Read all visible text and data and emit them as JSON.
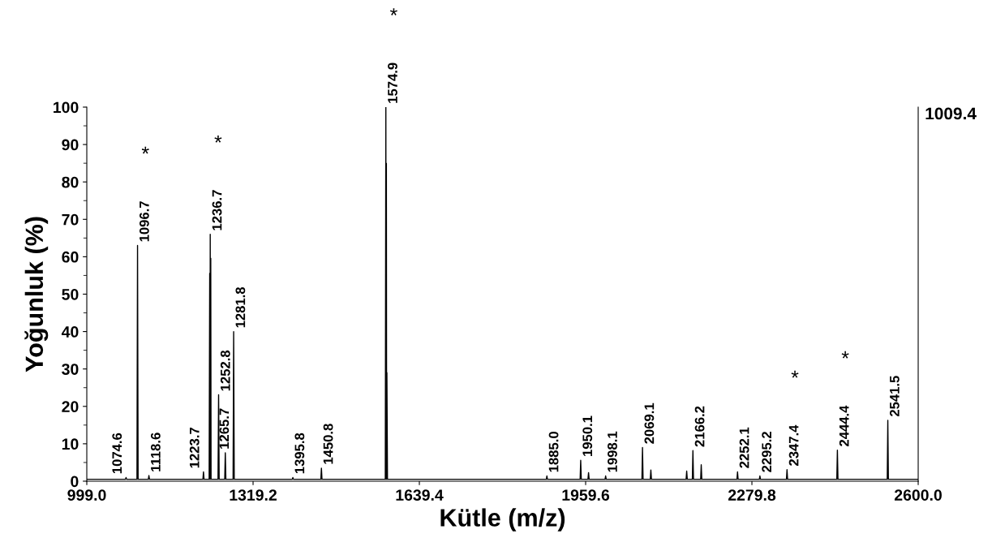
{
  "chart_data": {
    "type": "line",
    "xlabel": "Kütle (m/z)",
    "ylabel": "Yoğunluk (%)",
    "xlim": [
      999.0,
      2600.0
    ],
    "ylim": [
      0,
      100
    ],
    "xticks": [
      {
        "value": 999.0,
        "label": "999.0"
      },
      {
        "value": 1319.2,
        "label": "1319.2"
      },
      {
        "value": 1639.4,
        "label": "1639.4"
      },
      {
        "value": 1959.6,
        "label": "1959.6"
      },
      {
        "value": 2279.8,
        "label": "2279.8"
      },
      {
        "value": 2600.0,
        "label": "2600.0"
      }
    ],
    "yticks": [
      0,
      10,
      20,
      30,
      40,
      50,
      60,
      70,
      80,
      90,
      100
    ],
    "grid": false,
    "legend": false,
    "marker": "none",
    "line_style": "solid",
    "series": [
      {
        "color": "#000000",
        "x": [
          999.0,
          1073.5,
          1074.6,
          1075.7,
          1095.6,
          1096.7,
          1097.8,
          1117.5,
          1118.6,
          1119.7,
          1222.6,
          1223.7,
          1224.8,
          1234.6,
          1235.7,
          1236.2,
          1236.7,
          1237.2,
          1237.7,
          1238.3,
          1251.7,
          1252.8,
          1253.9,
          1264.6,
          1265.7,
          1266.8,
          1280.7,
          1281.8,
          1282.9,
          1394.7,
          1395.8,
          1396.9,
          1449.7,
          1450.8,
          1451.9,
          1573.8,
          1574.9,
          1575.4,
          1575.9,
          1576.4,
          1576.9,
          1578.0,
          1883.9,
          1885.0,
          1886.1,
          1949.0,
          1950.1,
          1951.2,
          1964.1,
          1965.2,
          1966.3,
          1997.0,
          1998.1,
          1999.2,
          2068.0,
          2069.1,
          2070.2,
          2084.1,
          2085.2,
          2086.3,
          2153.1,
          2154.2,
          2155.3,
          2165.1,
          2166.2,
          2167.3,
          2181.1,
          2182.2,
          2183.3,
          2251.0,
          2252.1,
          2253.2,
          2294.1,
          2295.2,
          2296.3,
          2346.3,
          2347.4,
          2348.5,
          2443.3,
          2444.4,
          2445.5,
          2540.4,
          2541.5,
          2542.6,
          2600.0
        ],
        "values": [
          0.5,
          0.5,
          1.0,
          0.5,
          0.5,
          63,
          0.5,
          0.5,
          1.5,
          0.5,
          0.5,
          2.5,
          0.5,
          0.5,
          55.6,
          0.5,
          66,
          0.5,
          59.6,
          0.5,
          0.5,
          23.1,
          0.5,
          0.5,
          7.6,
          0.5,
          0.5,
          40,
          0.5,
          0.5,
          1.0,
          0.5,
          0.5,
          3.5,
          0.5,
          0.5,
          100,
          0.5,
          85,
          0.5,
          29,
          0.5,
          0.5,
          1.4,
          0.5,
          0.5,
          5.6,
          0.5,
          0.5,
          2.3,
          0.5,
          0.5,
          1.4,
          0.5,
          0.5,
          9.0,
          0.5,
          0.5,
          3.0,
          0.5,
          0.5,
          2.7,
          0.5,
          0.5,
          8.2,
          0.5,
          0.5,
          4.4,
          0.5,
          0.5,
          2.5,
          0.5,
          0.5,
          1.4,
          0.5,
          0.5,
          3.1,
          0.5,
          0.5,
          8.3,
          0.5,
          0.5,
          16.3,
          0.5,
          0.5
        ]
      }
    ],
    "annotations": [
      "1009.4",
      {
        "text": "1074.6",
        "x": 1074.6,
        "y": 1.0
      },
      {
        "text": "1096.7",
        "x": 1096.7,
        "y": 63
      },
      "*",
      {
        "text": "1118.6",
        "x": 1118.6,
        "y": 1.5
      },
      {
        "text": "1223.7",
        "x": 1223.7,
        "y": 2.5
      },
      {
        "text": "1236.7",
        "x": 1236.7,
        "y": 66
      },
      "*",
      {
        "text": "1252.8",
        "x": 1252.8,
        "y": 23.1
      },
      {
        "text": "1265.7",
        "x": 1265.7,
        "y": 7.6
      },
      {
        "text": "1281.8",
        "x": 1281.8,
        "y": 40
      },
      {
        "text": "1395.8",
        "x": 1395.8,
        "y": 1.0
      },
      {
        "text": "1450.8",
        "x": 1450.8,
        "y": 3.5
      },
      {
        "text": "1574.9",
        "x": 1574.9,
        "y": 100
      },
      "*",
      {
        "text": "1885.0",
        "x": 1885.0,
        "y": 1.4
      },
      {
        "text": "1950.1",
        "x": 1950.1,
        "y": 5.6
      },
      {
        "text": "1998.1",
        "x": 1998.1,
        "y": 1.4
      },
      {
        "text": "2069.1",
        "x": 2069.1,
        "y": 9.0
      },
      {
        "text": "2166.2",
        "x": 2166.2,
        "y": 8.2
      },
      {
        "text": "2252.1",
        "x": 2252.1,
        "y": 2.5
      },
      {
        "text": "2295.2",
        "x": 2295.2,
        "y": 1.4
      },
      {
        "text": "2347.4",
        "x": 2347.4,
        "y": 3.1
      },
      "*",
      {
        "text": "2444.4",
        "x": 2444.4,
        "y": 8.3
      },
      "*",
      {
        "text": "2541.5",
        "x": 2541.5,
        "y": 16.3
      }
    ]
  }
}
